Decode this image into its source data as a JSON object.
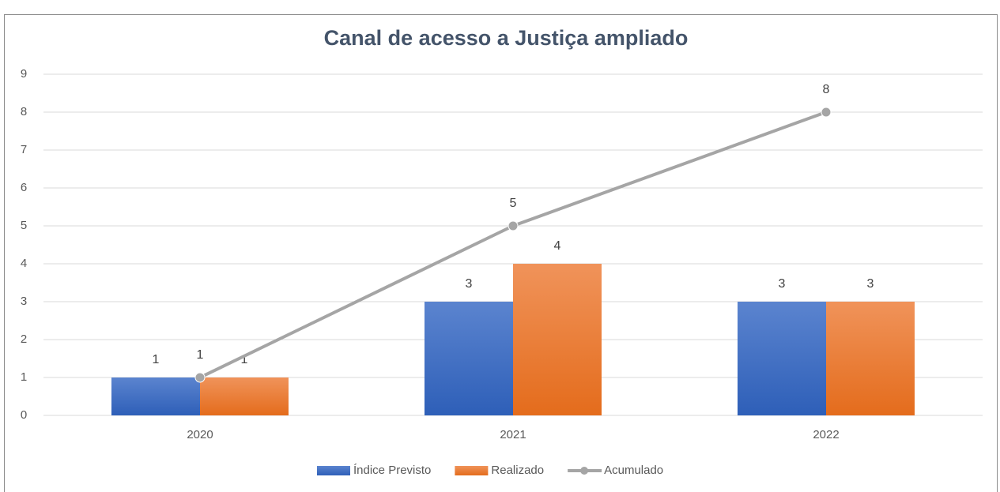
{
  "chart_data": {
    "type": "bar",
    "title": "Canal de acesso a Justiça ampliado",
    "categories": [
      "2020",
      "2021",
      "2022"
    ],
    "series": [
      {
        "name": "Índice Previsto",
        "color": "#4472c4",
        "values": [
          1,
          3,
          3
        ]
      },
      {
        "name": "Realizado",
        "color": "#ed7d31",
        "values": [
          1,
          4,
          3
        ]
      },
      {
        "name": "Acumulado",
        "color": "#a5a5a5",
        "type": "line",
        "values": [
          1,
          5,
          8
        ]
      }
    ],
    "ylim": [
      0,
      9
    ],
    "yticks": [
      0,
      1,
      2,
      3,
      4,
      5,
      6,
      7,
      8,
      9
    ],
    "grid": true,
    "legend": "bottom"
  }
}
